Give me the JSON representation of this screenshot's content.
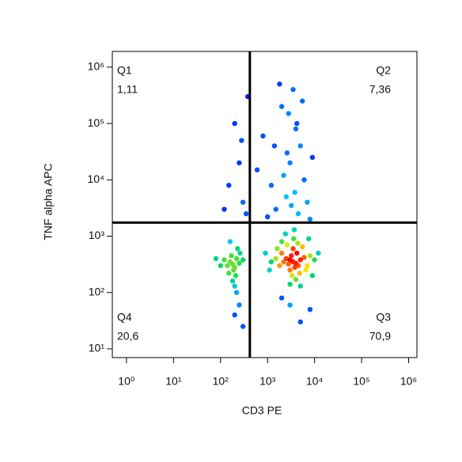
{
  "chart_data": {
    "type": "density-scatter",
    "x_label": "CD3 PE",
    "y_label": "TNF alpha APC",
    "log_x": true,
    "log_y": true,
    "xlim": [
      0.5,
      1500000
    ],
    "ylim": [
      7,
      1900000
    ],
    "xticks": [
      {
        "value": 1,
        "label": "10⁰"
      },
      {
        "value": 10,
        "label": "10¹"
      },
      {
        "value": 100,
        "label": "10²"
      },
      {
        "value": 1000,
        "label": "10³"
      },
      {
        "value": 10000,
        "label": "10⁴"
      },
      {
        "value": 100000,
        "label": "10⁵"
      },
      {
        "value": 1000000,
        "label": "10⁶"
      }
    ],
    "yticks": [
      {
        "value": 10,
        "label": "10¹"
      },
      {
        "value": 100,
        "label": "10²"
      },
      {
        "value": 1000,
        "label": "10³"
      },
      {
        "value": 10000,
        "label": "10⁴"
      },
      {
        "value": 100000,
        "label": "10⁵"
      },
      {
        "value": 1000000,
        "label": "10⁶"
      }
    ],
    "gates": {
      "x": 420,
      "y": 1740
    },
    "quadrants": [
      {
        "name": "Q1",
        "value": 1.11,
        "value_label": "1,11"
      },
      {
        "name": "Q2",
        "value": 7.36,
        "value_label": "7,36"
      },
      {
        "name": "Q4",
        "value": 20.6,
        "value_label": "20,6"
      },
      {
        "name": "Q3",
        "value": 70.9,
        "value_label": "70,9"
      }
    ],
    "x": [
      3500,
      3000,
      4000,
      2500,
      4500,
      3200,
      3800,
      2800,
      5000,
      2200,
      6000,
      1800,
      3500,
      3000,
      4200,
      2000,
      7000,
      1500,
      8000,
      1200,
      3300,
      4800,
      2600,
      5500,
      900,
      10000,
      3600,
      2400,
      6500,
      4000,
      3000,
      5000,
      1100,
      12000,
      2000,
      7500,
      3700,
      4400,
      1600,
      9000,
      180,
      200,
      160,
      220,
      140,
      190,
      250,
      120,
      170,
      210,
      150,
      260,
      100,
      230,
      180,
      200,
      300,
      80,
      160,
      220,
      1500,
      2500,
      3000,
      4000,
      2000,
      3500,
      6000,
      1200,
      5000,
      800,
      2800,
      4500,
      7000,
      1000,
      3200,
      2200,
      9000,
      600,
      1800,
      5500,
      3800,
      2600,
      4200,
      1400,
      8000,
      300,
      250,
      200,
      350,
      150,
      380,
      280,
      120,
      250,
      200,
      3000,
      5000,
      2000,
      8000,
      300
    ],
    "y": [
      350,
      380,
      330,
      400,
      300,
      450,
      280,
      320,
      380,
      350,
      420,
      300,
      600,
      250,
      500,
      500,
      300,
      400,
      450,
      350,
      200,
      220,
      700,
      650,
      500,
      380,
      900,
      1100,
      250,
      170,
      140,
      130,
      250,
      500,
      800,
      900,
      1300,
      750,
      600,
      200,
      320,
      280,
      350,
      400,
      300,
      250,
      330,
      380,
      450,
      200,
      220,
      500,
      300,
      600,
      160,
      130,
      380,
      400,
      800,
      100,
      3000,
      5000,
      20000,
      80000,
      200000,
      400000,
      10000,
      8000,
      40000,
      60000,
      150000,
      2500,
      4000,
      2200,
      3500,
      12000,
      25000,
      15000,
      500000,
      250000,
      6000,
      30000,
      100000,
      40000,
      2000,
      4000,
      20000,
      100000,
      2500,
      8000,
      300000,
      50000,
      3000,
      60,
      40,
      60,
      30,
      80,
      50,
      25
    ]
  }
}
